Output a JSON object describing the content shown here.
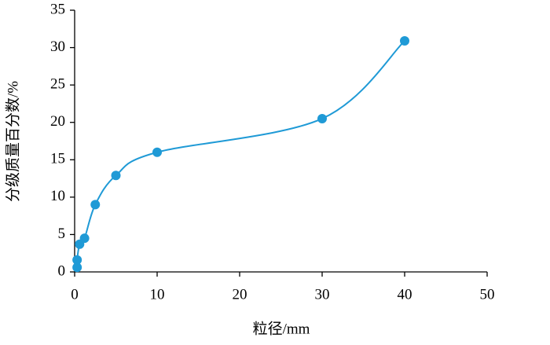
{
  "chart_data": {
    "type": "scatter",
    "x_label": "粒径/mm",
    "y_label": "分级质量百分数/%",
    "series": [
      {
        "color": "#1f9ad6",
        "x": [
          0.3,
          0.3,
          0.6,
          1.2,
          2.5,
          5,
          10,
          30,
          40
        ],
        "values": [
          0.6,
          1.6,
          3.7,
          4.5,
          9.0,
          12.9,
          16.0,
          20.5,
          30.9
        ]
      }
    ],
    "smooth_line": true,
    "xlim": [
      0,
      50
    ],
    "xticks": [
      0,
      10,
      20,
      30,
      40,
      50
    ],
    "ylim": [
      0,
      35
    ],
    "yticks": [
      0,
      5,
      10,
      15,
      20,
      25,
      30,
      35
    ]
  }
}
